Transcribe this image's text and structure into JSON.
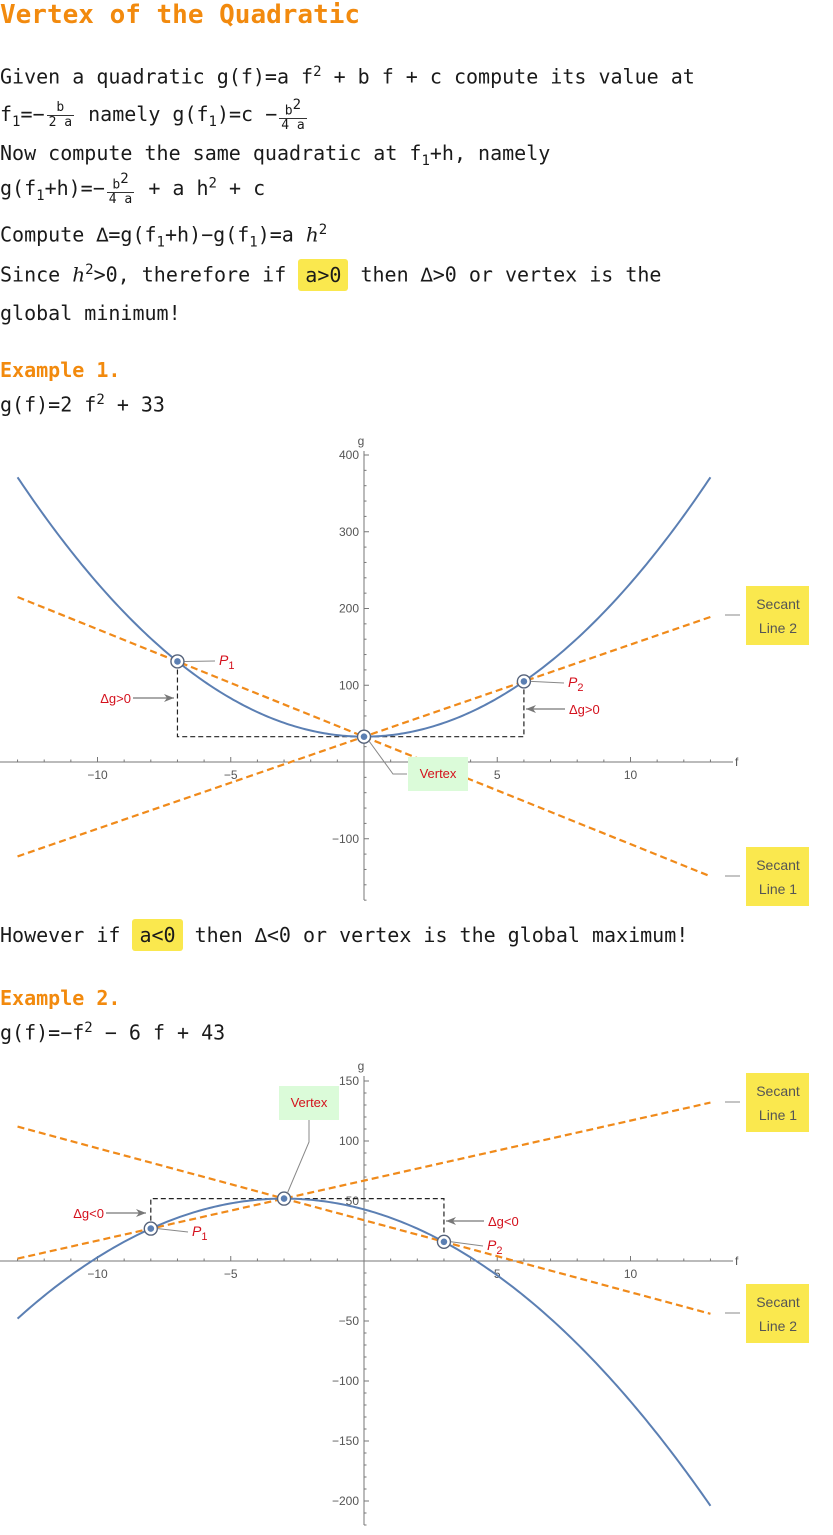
{
  "title": "Vertex of the Quadratic",
  "intro": {
    "l1a": "Given a quadratic g(f)=a f",
    "l1sup": "2",
    "l1b": "+ b f + c compute its value at",
    "l2f1": "f",
    "l2sub": "1",
    "l2eq": "=−",
    "l2num": "b",
    "l2den": "2 a",
    "l2mid": "namely g(f",
    "l2sub2": "1",
    "l2c": ")=c −",
    "l2num2": "b",
    "l2num2sup": "2",
    "l2den2": "4 a",
    "l3a": "Now compute the same quadratic at f",
    "l3sub": "1",
    "l3b": "+h, namely",
    "l4a": "g(f",
    "l4sub": "1",
    "l4b": "+h)=−",
    "l4num": "b",
    "l4numsup": "2",
    "l4den": "4 a",
    "l4c": "+ a h",
    "l4csup": "2",
    "l4d": "+ c",
    "l5a": "Compute ∆=g(f",
    "l5sub": "1",
    "l5b": "+h)−g(f",
    "l5sub2": "1",
    "l5c": ")=a ",
    "l5h": "h",
    "l5sup": "2",
    "l6a": "Since ",
    "l6h": "h",
    "l6sup": "2",
    "l6b": ">0, therefore if ",
    "l6hl": "a>0",
    "l6c": " then ∆>0 or vertex is the",
    "l7": "global minimum!"
  },
  "example1": {
    "heading": "Example 1.",
    "eq_a": "g(f)=2 f",
    "eq_sup": "2",
    "eq_b": "+ 33"
  },
  "however": {
    "a": "However if ",
    "hl": "a<0",
    "b": " then ∆<0 or vertex is the global maximum!"
  },
  "example2": {
    "heading": "Example 2.",
    "eq_a": "g(f)=−f",
    "eq_sup": "2",
    "eq_b": "− 6 f + 43"
  },
  "colors": {
    "curve": "#5b7fb3",
    "secant": "#f08a1a",
    "heading": "#f28a0e",
    "highlight": "#fae84e",
    "vertex_label_bg": "#dbfbd9",
    "annotation": "#d4101c"
  },
  "chart_data": [
    {
      "type": "line",
      "function": "g(f)=2 f^2 + 33",
      "xlabel": "f",
      "ylabel": "g",
      "xlim": [
        -13,
        13
      ],
      "ylim": [
        -180,
        400
      ],
      "xticks": [
        -10,
        -5,
        5,
        10
      ],
      "yticks": [
        -100,
        100,
        200,
        300,
        400
      ],
      "xticklabels": [
        "−10",
        "−5",
        "5",
        "10"
      ],
      "yticklabels": [
        "−100",
        "100",
        "200",
        "300",
        "400"
      ],
      "series": [
        {
          "role": "curve",
          "x": [
            -13,
            -12,
            -11,
            -10,
            -9,
            -8,
            -7,
            -6,
            -5,
            -4,
            -3,
            -2,
            -1,
            0,
            1,
            2,
            3,
            4,
            5,
            6,
            7,
            8,
            9,
            10,
            11,
            12,
            13
          ],
          "y": [
            371,
            321,
            275,
            233,
            195,
            161,
            131,
            105,
            83,
            65,
            51,
            41,
            35,
            33,
            35,
            41,
            51,
            65,
            83,
            105,
            131,
            161,
            195,
            233,
            275,
            321,
            371
          ]
        },
        {
          "name": "Secant Line 1",
          "x": [
            -13,
            13
          ],
          "y": [
            215,
            -149
          ]
        },
        {
          "name": "Secant Line 2",
          "x": [
            -13,
            13
          ],
          "y": [
            -123,
            189
          ]
        }
      ],
      "points": [
        {
          "label": "P",
          "sub": "1",
          "x": -7,
          "y": 131
        },
        {
          "label": "P",
          "sub": "2",
          "x": 6,
          "y": 105
        },
        {
          "label": "Vertex",
          "x": 0,
          "y": 33
        }
      ],
      "annotations": [
        {
          "text": "Δg>0",
          "side": "left"
        },
        {
          "text": "Δg>0",
          "side": "right"
        }
      ],
      "secant_labels": {
        "top": [
          "Secant",
          "Line 2"
        ],
        "bottom": [
          "Secant",
          "Line 1"
        ]
      }
    },
    {
      "type": "line",
      "function": "g(f)=−f^2 − 6 f + 43",
      "xlabel": "f",
      "ylabel": "g",
      "xlim": [
        -13,
        13
      ],
      "ylim": [
        -220,
        150
      ],
      "xticks": [
        -10,
        -5,
        5,
        10
      ],
      "yticks": [
        -200,
        -150,
        -100,
        -50,
        50,
        100,
        150
      ],
      "xticklabels": [
        "−10",
        "−5",
        "5",
        "10"
      ],
      "yticklabels": [
        "−200",
        "−150",
        "−100",
        "−50",
        "50",
        "100",
        "150"
      ],
      "series": [
        {
          "role": "curve",
          "x": [
            -13,
            -12,
            -11,
            -10,
            -9,
            -8,
            -7,
            -6,
            -5,
            -4,
            -3,
            -2,
            -1,
            0,
            1,
            2,
            3,
            4,
            5,
            6,
            7,
            8,
            9,
            10,
            11,
            12,
            13
          ],
          "y": [
            -48,
            -29,
            -12,
            3,
            16,
            27,
            36,
            43,
            48,
            51,
            52,
            51,
            48,
            43,
            36,
            27,
            16,
            3,
            -12,
            -29,
            -48,
            -69,
            -92,
            -117,
            -144,
            -173,
            -204
          ]
        },
        {
          "name": "Secant Line 1",
          "x": [
            -13,
            13
          ],
          "y": [
            2,
            132
          ]
        },
        {
          "name": "Secant Line 2",
          "x": [
            -13,
            13
          ],
          "y": [
            112,
            -44
          ]
        }
      ],
      "points": [
        {
          "label": "P",
          "sub": "1",
          "x": -8,
          "y": 27
        },
        {
          "label": "P",
          "sub": "2",
          "x": 3,
          "y": 16
        },
        {
          "label": "Vertex",
          "x": -3,
          "y": 52
        }
      ],
      "annotations": [
        {
          "text": "Δg<0",
          "side": "left"
        },
        {
          "text": "Δg<0",
          "side": "right"
        }
      ],
      "secant_labels": {
        "top": [
          "Secant",
          "Line 1"
        ],
        "bottom": [
          "Secant",
          "Line 2"
        ]
      }
    }
  ]
}
